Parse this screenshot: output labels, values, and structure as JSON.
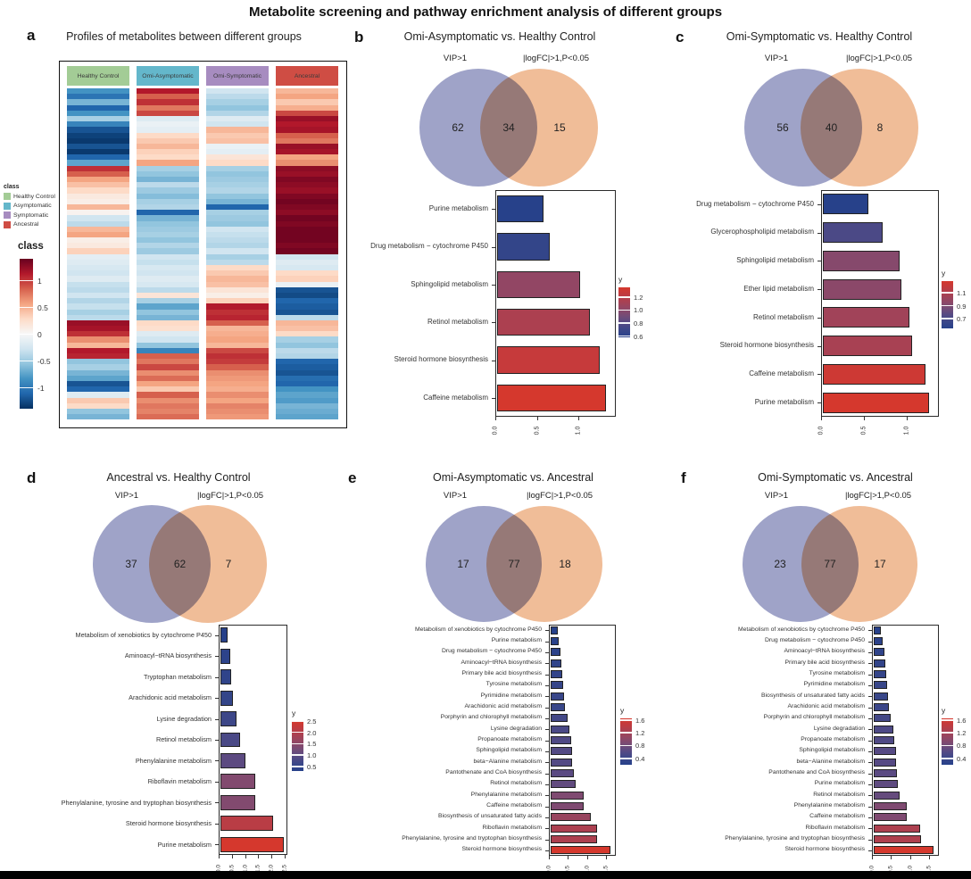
{
  "figure_title": "Metabolite screening and pathway enrichment analysis of different groups",
  "chart_data": {
    "panel_a": {
      "label": "a",
      "title": "Profiles of metabolites between different groups",
      "type": "heatmap",
      "class_legend": {
        "title": "class",
        "items": [
          {
            "label": "Healthy Control",
            "color": "#a3cc96"
          },
          {
            "label": "Asymptomatic",
            "color": "#64b7cb"
          },
          {
            "label": "Symptomatic",
            "color": "#a78cc0"
          },
          {
            "label": "Ancestral",
            "color": "#cf4d44"
          }
        ]
      },
      "colorbar": {
        "title": "class",
        "ticks": [
          "1",
          "0.5",
          "0",
          "-0.5",
          "-1"
        ],
        "domain": [
          -1.4,
          1.4
        ]
      },
      "columns": [
        {
          "name": "Healthy Control",
          "header_color": "#a3cc96",
          "values": [
            -0.9,
            -1.1,
            -0.7,
            -1.2,
            -0.9,
            -0.5,
            -1.0,
            -1.3,
            -1.4,
            -1.45,
            -1.3,
            -1.45,
            -1.2,
            -0.8,
            1.1,
            0.9,
            0.6,
            0.45,
            0.3,
            0.15,
            0.1,
            0.5,
            0.05,
            -0.3,
            -0.4,
            0.5,
            0.6,
            0.1,
            0.15,
            0.35,
            -0.15,
            -0.2,
            -0.25,
            -0.3,
            -0.2,
            -0.35,
            -0.4,
            -0.3,
            -0.45,
            -0.35,
            -0.5,
            -0.4,
            1.3,
            1.25,
            1.1,
            0.7,
            0.5,
            1.2,
            1.15,
            -0.6,
            -0.5,
            -0.7,
            -0.8,
            -1.3,
            -1.2,
            -0.2,
            0.4,
            0.3,
            -0.6,
            -0.7
          ]
        },
        {
          "name": "Omi-Asymptomatic",
          "header_color": "#64b7cb",
          "values": [
            1.2,
            0.9,
            1.1,
            0.8,
            1.0,
            -0.2,
            -0.1,
            -0.15,
            0.3,
            0.4,
            0.5,
            0.35,
            0.3,
            0.6,
            -0.5,
            -0.6,
            -0.7,
            -0.4,
            -0.55,
            -0.65,
            -0.5,
            -0.45,
            -1.2,
            -0.7,
            -0.6,
            -0.55,
            -0.5,
            -0.6,
            -0.45,
            -0.55,
            -0.3,
            -0.35,
            -0.25,
            -0.3,
            -0.2,
            -0.25,
            -0.4,
            0.2,
            -0.5,
            -0.8,
            -0.6,
            -0.7,
            0.3,
            0.25,
            -0.2,
            -0.3,
            -0.6,
            -1.0,
            0.9,
            0.8,
            1.0,
            0.7,
            0.85,
            0.6,
            0.4,
            0.9,
            0.7,
            0.8,
            0.75,
            0.85
          ]
        },
        {
          "name": "Omi-Symptomatic",
          "header_color": "#a78cc0",
          "values": [
            -0.3,
            -0.4,
            -0.5,
            -0.6,
            -0.45,
            -0.2,
            -0.3,
            0.5,
            0.4,
            0.45,
            -0.1,
            -0.15,
            0.2,
            0.3,
            -0.5,
            -0.6,
            -0.55,
            -0.5,
            -0.45,
            -0.6,
            -0.7,
            -1.2,
            -0.5,
            -0.55,
            -0.6,
            -0.3,
            -0.35,
            -0.4,
            -0.45,
            -0.3,
            -0.5,
            -0.4,
            0.3,
            0.4,
            0.5,
            0.45,
            0.2,
            0.1,
            0.35,
            1.2,
            1.1,
            1.15,
            0.9,
            0.5,
            0.55,
            0.6,
            0.5,
            1.0,
            1.1,
            1.05,
            0.9,
            0.7,
            0.65,
            0.6,
            0.55,
            0.7,
            0.6,
            0.75,
            0.7,
            0.65
          ]
        },
        {
          "name": "Ancestral",
          "header_color": "#cf4d44",
          "values": [
            0.5,
            0.6,
            0.4,
            0.55,
            1.0,
            1.3,
            1.2,
            1.25,
            0.9,
            0.8,
            1.3,
            1.25,
            0.6,
            0.7,
            1.35,
            1.3,
            1.4,
            1.35,
            1.3,
            1.4,
            1.45,
            1.4,
            1.35,
            1.45,
            1.4,
            1.45,
            1.45,
            1.45,
            1.4,
            1.45,
            -0.3,
            -0.2,
            -0.25,
            0.3,
            0.35,
            -0.1,
            -1.3,
            -1.35,
            -1.2,
            -1.25,
            -1.3,
            -0.4,
            0.5,
            0.45,
            0.3,
            -0.5,
            -0.6,
            -0.4,
            -0.45,
            -1.2,
            -1.25,
            -1.3,
            -1.15,
            -1.2,
            -0.9,
            -0.8,
            -0.85,
            -0.7,
            -0.75,
            -0.8
          ]
        }
      ]
    },
    "venn_colors": {
      "left": "#9fa3c8",
      "right": "#f0bd98"
    },
    "panels": [
      {
        "label": "b",
        "title": "Omi-Asymptomatic vs. Healthy Control",
        "venn": {
          "left_label": "VIP>1",
          "right_label": "|logFC|>1,P<0.05",
          "left_only": "62",
          "overlap": "34",
          "right_only": "15"
        },
        "bar": {
          "type": "bar",
          "categories": [
            "Purine metabolism",
            "Drug metabolism − cytochrome P450",
            "Sphingolipid metabolism",
            "Retinol metabolism",
            "Steroid hormone biosynthesis",
            "Caffeine metabolism"
          ],
          "values": [
            0.58,
            0.65,
            1.03,
            1.15,
            1.27,
            1.35
          ],
          "x_ticks": [
            "0.0",
            "0.5",
            "1.0"
          ],
          "x_tick_values": [
            0,
            0.5,
            1.0
          ],
          "x_max": 1.45,
          "legend_title": "y",
          "legend_ticks": [
            1.2,
            1.0,
            0.8,
            0.6
          ]
        }
      },
      {
        "label": "c",
        "title": "Omi-Symptomatic vs. Healthy Control",
        "venn": {
          "left_label": "VIP>1",
          "right_label": "|logFC|>1,P<0.05",
          "left_only": "56",
          "overlap": "40",
          "right_only": "8"
        },
        "bar": {
          "type": "bar",
          "categories": [
            "Drug metabolism − cytochrome P450",
            "Glycerophospholipid metabolism",
            "Sphingolipid metabolism",
            "Ether lipid metabolism",
            "Retinol metabolism",
            "Steroid hormone biosynthesis",
            "Caffeine metabolism",
            "Purine metabolism"
          ],
          "values": [
            0.55,
            0.72,
            0.93,
            0.95,
            1.04,
            1.07,
            1.24,
            1.28
          ],
          "x_ticks": [
            "0.0",
            "0.5",
            "1.0"
          ],
          "x_tick_values": [
            0,
            0.5,
            1.0
          ],
          "x_max": 1.38,
          "legend_title": "y",
          "legend_ticks": [
            1.1,
            0.9,
            0.7
          ]
        }
      },
      {
        "label": "d",
        "title": "Ancestral vs. Healthy Control",
        "venn": {
          "left_label": "VIP>1",
          "right_label": "|logFC|>1,P<0.05",
          "left_only": "37",
          "overlap": "62",
          "right_only": "7"
        },
        "bar": {
          "type": "bar",
          "categories": [
            "Metabolism of xenobiotics by cytochrome P450",
            "Aminoacyl−tRNA biosynthesis",
            "Tryptophan metabolism",
            "Arachidonic acid metabolism",
            "Lysine degradation",
            "Retinol metabolism",
            "Phenylalanine metabolism",
            "Riboflavin metabolism",
            "Phenylalanine, tyrosine and tryptophan biosynthesis",
            "Steroid hormone biosynthesis",
            "Purine metabolism"
          ],
          "values": [
            0.3,
            0.4,
            0.45,
            0.5,
            0.65,
            0.8,
            1.0,
            1.4,
            1.4,
            2.1,
            2.5
          ],
          "x_ticks": [
            "0.0",
            "0.5",
            "1.0",
            "1.5",
            "2.0",
            "2.5"
          ],
          "x_tick_values": [
            0,
            0.5,
            1.0,
            1.5,
            2.0,
            2.5
          ],
          "x_max": 2.6,
          "legend_title": "y",
          "legend_ticks": [
            2.5,
            2.0,
            1.5,
            1.0,
            0.5
          ]
        }
      },
      {
        "label": "e",
        "title": "Omi-Asymptomatic vs. Ancestral",
        "venn": {
          "left_label": "VIP>1",
          "right_label": "|logFC|>1,P<0.05",
          "left_only": "17",
          "overlap": "77",
          "right_only": "18"
        },
        "bar": {
          "type": "bar",
          "categories": [
            "Metabolism of xenobiotics by cytochrome P450",
            "Purine metabolism",
            "Drug metabolism − cytochrome P450",
            "Aminoacyl−tRNA biosynthesis",
            "Primary bile acid biosynthesis",
            "Tyrosine metabolism",
            "Pyrimidine metabolism",
            "Arachidonic acid metabolism",
            "Porphyrin and chlorophyll metabolism",
            "Lysine degradation",
            "Propanoate metabolism",
            "Sphingolipid metabolism",
            "beta−Alanine metabolism",
            "Pantothenate and CoA biosynthesis",
            "Retinol metabolism",
            "Phenylalanine metabolism",
            "Caffeine metabolism",
            "Biosynthesis of unsaturated fatty acids",
            "Riboflavin metabolism",
            "Phenylalanine, tyrosine and tryptophan biosynthesis",
            "Steroid hormone biosynthesis"
          ],
          "values": [
            0.2,
            0.23,
            0.27,
            0.3,
            0.32,
            0.35,
            0.38,
            0.4,
            0.48,
            0.53,
            0.57,
            0.6,
            0.6,
            0.65,
            0.7,
            0.9,
            0.9,
            1.1,
            1.27,
            1.28,
            1.65
          ],
          "x_ticks": [
            "0.0",
            "0.5",
            "1.0",
            "1.5"
          ],
          "x_tick_values": [
            0,
            0.5,
            1.0,
            1.5
          ],
          "x_max": 1.75,
          "legend_title": "y",
          "legend_ticks": [
            1.6,
            1.2,
            0.8,
            0.4
          ]
        }
      },
      {
        "label": "f",
        "title": "Omi-Symptomatic vs. Ancestral",
        "venn": {
          "left_label": "VIP>1",
          "right_label": "|logFC|>1,P<0.05",
          "left_only": "23",
          "overlap": "77",
          "right_only": "17"
        },
        "bar": {
          "type": "bar",
          "categories": [
            "Metabolism of xenobiotics by cytochrome P450",
            "Drug metabolism − cytochrome P450",
            "Aminoacyl−tRNA biosynthesis",
            "Primary bile acid biosynthesis",
            "Tyrosine metabolism",
            "Pyrimidine metabolism",
            "Biosynthesis of unsaturated fatty acids",
            "Arachidonic acid metabolism",
            "Porphyrin and chlorophyll metabolism",
            "Lysine degradation",
            "Propanoate metabolism",
            "Sphingolipid metabolism",
            "beta−Alanine metabolism",
            "Pantothenate and CoA biosynthesis",
            "Purine metabolism",
            "Retinol metabolism",
            "Phenylalanine metabolism",
            "Caffeine metabolism",
            "Riboflavin metabolism",
            "Phenylalanine, tyrosine and tryptophan biosynthesis",
            "Steroid hormone biosynthesis"
          ],
          "values": [
            0.2,
            0.25,
            0.3,
            0.32,
            0.35,
            0.38,
            0.4,
            0.42,
            0.48,
            0.55,
            0.57,
            0.62,
            0.62,
            0.65,
            0.68,
            0.72,
            0.9,
            0.9,
            1.28,
            1.3,
            1.65
          ],
          "x_ticks": [
            "0.0",
            "0.5",
            "1.0",
            "1.5"
          ],
          "x_tick_values": [
            0,
            0.5,
            1.0,
            1.5
          ],
          "x_max": 1.75,
          "legend_title": "y",
          "legend_ticks": [
            1.6,
            1.2,
            0.8,
            0.4
          ]
        }
      }
    ]
  }
}
